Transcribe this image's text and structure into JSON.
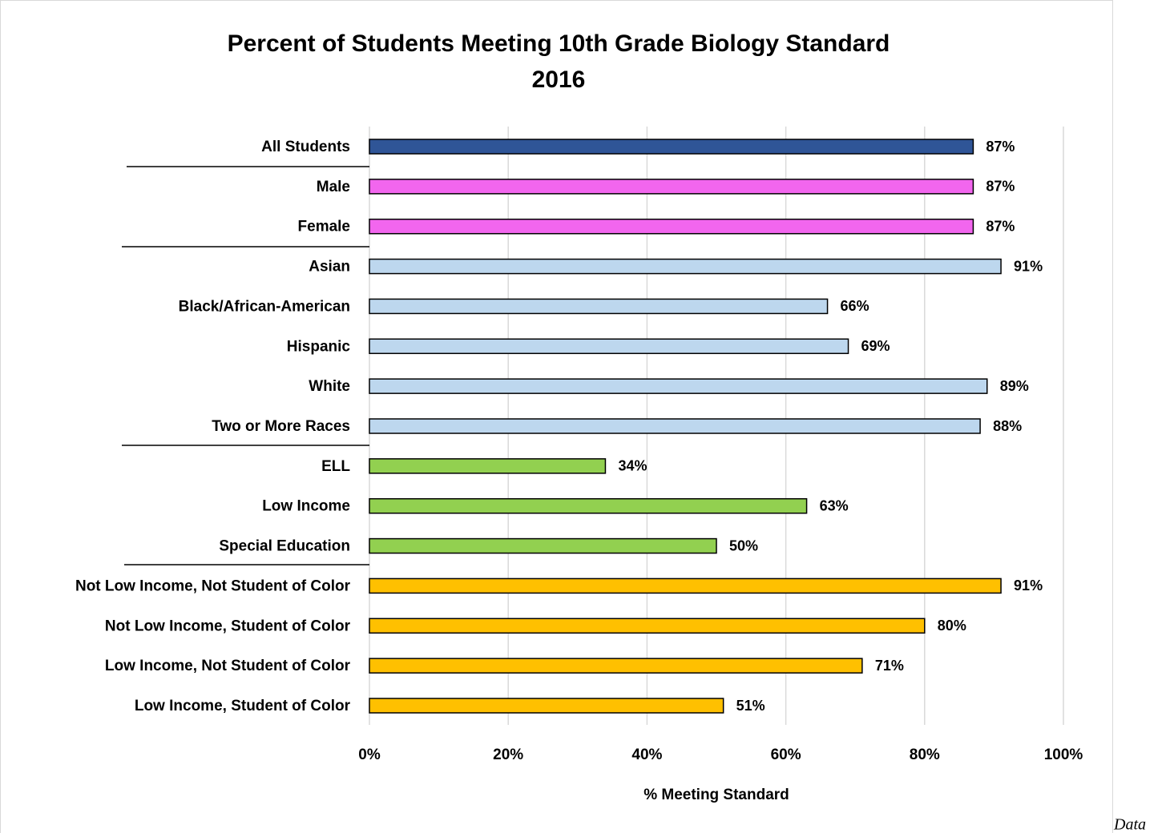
{
  "chart_data": {
    "type": "bar",
    "orientation": "horizontal",
    "title": "Percent of Students Meeting 10th Grade Biology Standard",
    "subtitle": "2016",
    "x_label": "% Meeting Standard",
    "annotation": "Data",
    "categories": [
      "All Students",
      "Male",
      "Female",
      "Asian",
      "Black/African-American",
      "Hispanic",
      "White",
      "Two or More Races",
      "ELL",
      "Low Income",
      "Special Education",
      "Not Low Income, Not Student of Color",
      "Not Low Income, Student of Color",
      "Low Income, Not Student of Color",
      "Low Income, Student of Color"
    ],
    "values": [
      87,
      87,
      87,
      91,
      66,
      69,
      89,
      88,
      34,
      63,
      50,
      91,
      80,
      71,
      51
    ],
    "value_labels": [
      "87%",
      "87%",
      "87%",
      "91%",
      "66%",
      "69%",
      "89%",
      "88%",
      "34%",
      "63%",
      "50%",
      "91%",
      "80%",
      "71%",
      "51%"
    ],
    "colors": [
      "#2f5597",
      "#f266ee",
      "#f266ee",
      "#bdd7ee",
      "#bdd7ee",
      "#bdd7ee",
      "#bdd7ee",
      "#bdd7ee",
      "#92d050",
      "#92d050",
      "#92d050",
      "#ffc000",
      "#ffc000",
      "#ffc000",
      "#ffc000"
    ],
    "xlim": [
      0,
      100
    ],
    "xticks": [
      {
        "value": 0,
        "label": "0%"
      },
      {
        "value": 20,
        "label": "20%"
      },
      {
        "value": 40,
        "label": "40%"
      },
      {
        "value": 60,
        "label": "60%"
      },
      {
        "value": 80,
        "label": "80%"
      },
      {
        "value": 100,
        "label": "100%"
      }
    ],
    "grid": true
  }
}
